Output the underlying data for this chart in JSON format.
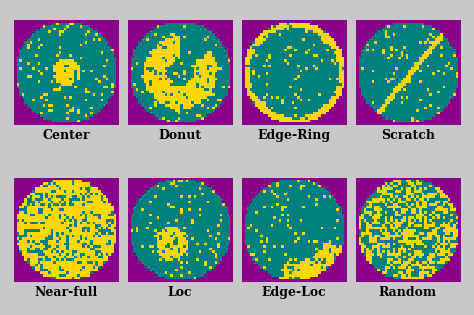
{
  "labels": [
    "Center",
    "Donut",
    "Edge-Ring",
    "Scratch",
    "Near-full",
    "Loc",
    "Edge-Loc",
    "Random"
  ],
  "bg_color": [
    0.54,
    0.0,
    0.54
  ],
  "teal_color": [
    0.0,
    0.5,
    0.5
  ],
  "yellow_color": [
    1.0,
    0.85,
    0.0
  ],
  "outer_bg": "#c8c8c8",
  "grid_size": 40,
  "label_fontsize": 9,
  "noise_density": 0.1
}
